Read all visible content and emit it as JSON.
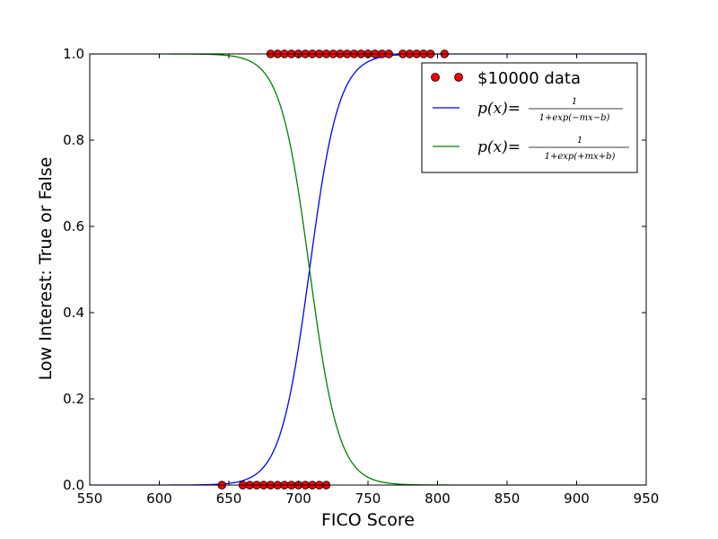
{
  "chart_data": {
    "type": "scatter",
    "xlabel": "FICO Score",
    "ylabel": "Low Interest: True or False",
    "xlim": [
      550,
      950
    ],
    "ylim": [
      0.0,
      1.0
    ],
    "xticks": [
      550,
      600,
      650,
      700,
      750,
      800,
      850,
      900,
      950
    ],
    "yticks": [
      0.0,
      0.2,
      0.4,
      0.6,
      0.8,
      1.0
    ],
    "ytick_labels": [
      "0.0",
      "0.2",
      "0.4",
      "0.6",
      "0.8",
      "1.0"
    ],
    "grid": false,
    "legend_position": "top-right",
    "colors": {
      "data": "#ff0000",
      "rising": "#0000ff",
      "falling": "#008000"
    },
    "series": [
      {
        "name": "$10000 data",
        "kind": "scatter",
        "points": [
          {
            "x": 645,
            "y": 0
          },
          {
            "x": 660,
            "y": 0
          },
          {
            "x": 665,
            "y": 0
          },
          {
            "x": 670,
            "y": 0
          },
          {
            "x": 675,
            "y": 0
          },
          {
            "x": 680,
            "y": 0
          },
          {
            "x": 685,
            "y": 0
          },
          {
            "x": 690,
            "y": 0
          },
          {
            "x": 695,
            "y": 0
          },
          {
            "x": 700,
            "y": 0
          },
          {
            "x": 705,
            "y": 0
          },
          {
            "x": 710,
            "y": 0
          },
          {
            "x": 715,
            "y": 0
          },
          {
            "x": 720,
            "y": 0
          },
          {
            "x": 680,
            "y": 1
          },
          {
            "x": 685,
            "y": 1
          },
          {
            "x": 690,
            "y": 1
          },
          {
            "x": 695,
            "y": 1
          },
          {
            "x": 700,
            "y": 1
          },
          {
            "x": 705,
            "y": 1
          },
          {
            "x": 710,
            "y": 1
          },
          {
            "x": 715,
            "y": 1
          },
          {
            "x": 720,
            "y": 1
          },
          {
            "x": 725,
            "y": 1
          },
          {
            "x": 730,
            "y": 1
          },
          {
            "x": 735,
            "y": 1
          },
          {
            "x": 740,
            "y": 1
          },
          {
            "x": 745,
            "y": 1
          },
          {
            "x": 750,
            "y": 1
          },
          {
            "x": 755,
            "y": 1
          },
          {
            "x": 760,
            "y": 1
          },
          {
            "x": 765,
            "y": 1
          },
          {
            "x": 775,
            "y": 1
          },
          {
            "x": 780,
            "y": 1
          },
          {
            "x": 785,
            "y": 1
          },
          {
            "x": 790,
            "y": 1
          },
          {
            "x": 795,
            "y": 1
          },
          {
            "x": 805,
            "y": 1
          }
        ]
      },
      {
        "name": "p(x) = 1 / (1+exp(-mx-b))",
        "kind": "logistic",
        "midpoint": 708,
        "slope": 0.095,
        "direction": "rising"
      },
      {
        "name": "p(x) = 1 / (1+exp(+mx+b))",
        "kind": "logistic",
        "midpoint": 708,
        "slope": 0.095,
        "direction": "falling"
      }
    ],
    "legend": {
      "data_label": "$10000 data",
      "formula_lhs": "p(x)=",
      "formula_num": "1",
      "formula_den_rising": "1+exp(−mx−b)",
      "formula_den_falling": "1+exp(+mx+b)"
    }
  }
}
